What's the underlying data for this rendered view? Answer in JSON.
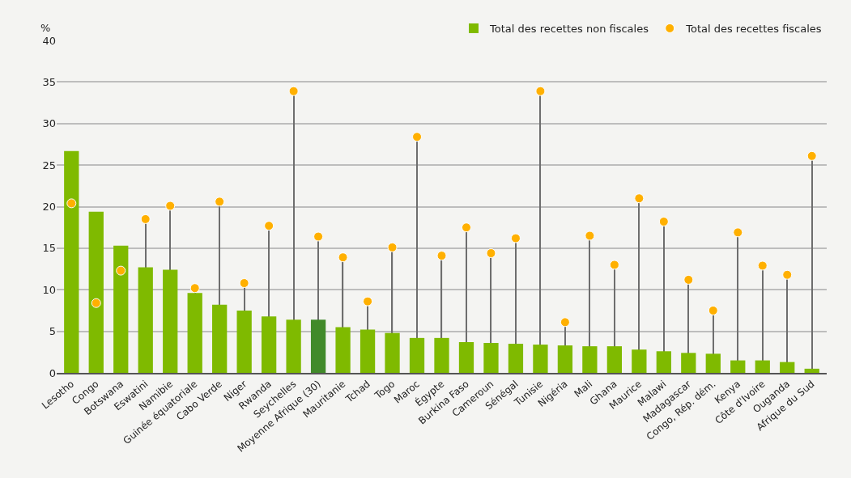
{
  "chart_data": {
    "type": "bar",
    "ylabel": "%",
    "categories": [
      "Lesotho",
      "Congo",
      "Botswana",
      "Eswatini",
      "Namibie",
      "Guinée équatoriale",
      "Cabo Verde",
      "Niger",
      "Rwanda",
      "Seychelles",
      "Moyenne Afrique (30)",
      "Mauritanie",
      "Tchad",
      "Togo",
      "Maroc",
      "Égypte",
      "Burkina Faso",
      "Cameroun",
      "Sénégal",
      "Tunisie",
      "Nigéria",
      "Mali",
      "Ghana",
      "Maurice",
      "Malawi",
      "Madagascar",
      "Congo, Rép. dém.",
      "Kenya",
      "Côte d'Ivoire",
      "Ouganda",
      "Afrique du Sud"
    ],
    "series": [
      {
        "name": "Total des recettes non fiscales",
        "colors": [
          "#7fba00",
          "#7fba00",
          "#7fba00",
          "#7fba00",
          "#7fba00",
          "#7fba00",
          "#7fba00",
          "#7fba00",
          "#7fba00",
          "#7fba00",
          "#418a2a",
          "#7fba00",
          "#7fba00",
          "#7fba00",
          "#7fba00",
          "#7fba00",
          "#7fba00",
          "#7fba00",
          "#7fba00",
          "#7fba00",
          "#7fba00",
          "#7fba00",
          "#7fba00",
          "#7fba00",
          "#7fba00",
          "#7fba00",
          "#7fba00",
          "#7fba00",
          "#7fba00",
          "#7fba00",
          "#7fba00"
        ],
        "values": [
          26.7,
          19.4,
          15.3,
          12.7,
          12.4,
          9.6,
          8.2,
          7.5,
          6.8,
          6.4,
          6.4,
          5.5,
          5.2,
          4.8,
          4.2,
          4.2,
          3.7,
          3.6,
          3.5,
          3.4,
          3.3,
          3.2,
          3.2,
          2.8,
          2.6,
          2.4,
          2.3,
          1.5,
          1.5,
          1.3,
          0.5
        ]
      },
      {
        "name": "Total des recettes fiscales",
        "type": "lollipop",
        "color": "#ffb000",
        "values": [
          20.4,
          8.4,
          12.3,
          18.5,
          20.1,
          10.2,
          20.6,
          10.8,
          17.7,
          33.9,
          16.4,
          13.9,
          8.6,
          15.1,
          28.4,
          14.1,
          17.5,
          14.4,
          16.2,
          33.9,
          6.1,
          16.5,
          13.0,
          21.0,
          18.2,
          11.2,
          7.5,
          16.9,
          12.9,
          11.8,
          26.1
        ]
      }
    ],
    "ylim": [
      0,
      40
    ],
    "yticks": [
      0,
      5,
      10,
      15,
      20,
      25,
      30,
      35,
      40
    ],
    "grid": "y",
    "legend": "top right",
    "marker": "circle"
  }
}
